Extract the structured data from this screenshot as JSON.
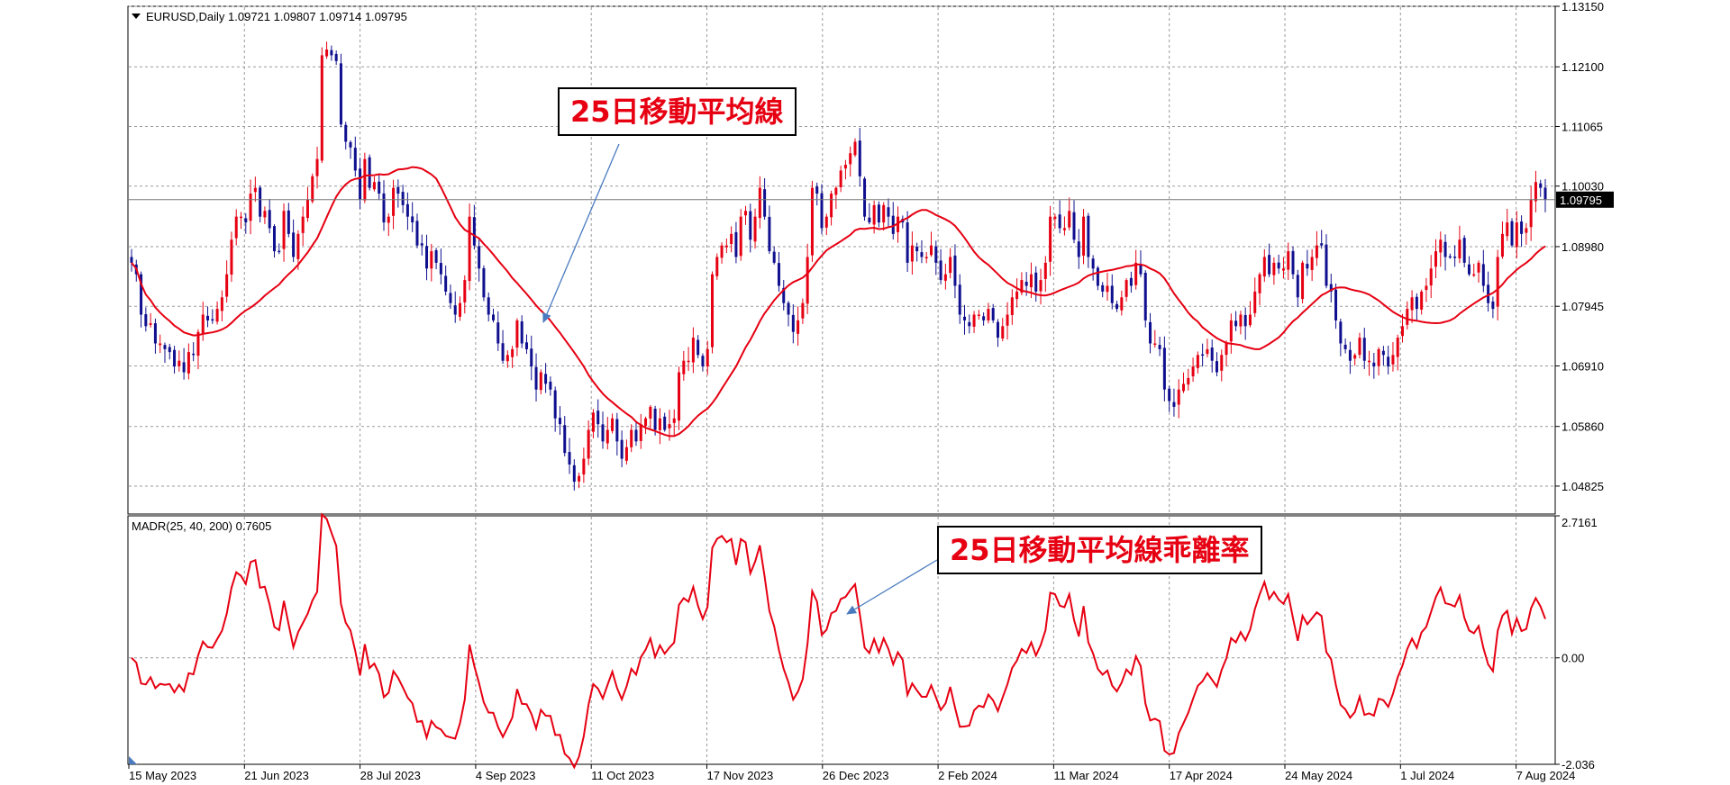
{
  "chart_data": [
    {
      "type": "candlestick",
      "title": "EURUSD,Daily  1.09721 1.09807 1.09714 1.09795",
      "ylim": [
        1.0434,
        1.1315
      ],
      "y_ticks": [
        "1.13150",
        "1.12100",
        "1.11065",
        "1.10030",
        "1.08980",
        "1.07945",
        "1.06910",
        "1.05860",
        "1.04825"
      ],
      "current_price": "1.09795",
      "x_ticks": [
        "15 May 2023",
        "21 Jun 2023",
        "28 Jul 2023",
        "4 Sep 2023",
        "11 Oct 2023",
        "17 Nov 2023",
        "26 Dec 2023",
        "2 Feb 2024",
        "11 Mar 2024",
        "17 Apr 2024",
        "24 May 2024",
        "1 Jul 2024",
        "7 Aug 2024"
      ],
      "grid": true,
      "close_series": [
        1.087,
        1.085,
        1.078,
        1.076,
        1.0765,
        1.073,
        1.073,
        1.072,
        1.0715,
        1.069,
        1.07,
        1.068,
        1.0715,
        1.071,
        1.075,
        1.078,
        1.077,
        1.077,
        1.079,
        1.081,
        1.085,
        1.091,
        1.095,
        1.095,
        1.094,
        1.099,
        1.1,
        1.095,
        1.096,
        1.093,
        1.089,
        1.089,
        1.096,
        1.092,
        1.088,
        1.092,
        1.095,
        1.098,
        1.102,
        1.105,
        1.123,
        1.124,
        1.123,
        1.122,
        1.111,
        1.108,
        1.107,
        1.103,
        1.098,
        1.105,
        1.1,
        1.101,
        1.099,
        1.094,
        1.095,
        1.1,
        1.099,
        1.097,
        1.095,
        1.094,
        1.09,
        1.09,
        1.086,
        1.089,
        1.087,
        1.085,
        1.082,
        1.08,
        1.078,
        1.08,
        1.084,
        1.095,
        1.09,
        1.086,
        1.081,
        1.078,
        1.077,
        1.073,
        1.07,
        1.071,
        1.072,
        1.077,
        1.073,
        1.072,
        1.069,
        1.065,
        1.068,
        1.066,
        1.065,
        1.06,
        1.059,
        1.054,
        1.052,
        1.049,
        1.05,
        1.053,
        1.058,
        1.061,
        1.059,
        1.056,
        1.058,
        1.06,
        1.056,
        1.053,
        1.055,
        1.058,
        1.056,
        1.059,
        1.06,
        1.062,
        1.058,
        1.06,
        1.058,
        1.059,
        1.06,
        1.068,
        1.07,
        1.07,
        1.074,
        1.071,
        1.069,
        1.072,
        1.085,
        1.088,
        1.09,
        1.09,
        1.092,
        1.088,
        1.095,
        1.096,
        1.091,
        1.095,
        1.1,
        1.095,
        1.089,
        1.087,
        1.083,
        1.08,
        1.078,
        1.075,
        1.077,
        1.08,
        1.088,
        1.1,
        1.099,
        1.093,
        1.095,
        1.099,
        1.1,
        1.103,
        1.104,
        1.106,
        1.108,
        1.102,
        1.095,
        1.094,
        1.097,
        1.094,
        1.097,
        1.095,
        1.092,
        1.095,
        1.094,
        1.087,
        1.09,
        1.089,
        1.088,
        1.088,
        1.09,
        1.087,
        1.084,
        1.085,
        1.088,
        1.083,
        1.078,
        1.077,
        1.076,
        1.078,
        1.078,
        1.077,
        1.079,
        1.077,
        1.074,
        1.076,
        1.078,
        1.081,
        1.082,
        1.084,
        1.083,
        1.085,
        1.082,
        1.084,
        1.087,
        1.095,
        1.095,
        1.093,
        1.093,
        1.096,
        1.091,
        1.088,
        1.095,
        1.088,
        1.086,
        1.083,
        1.082,
        1.083,
        1.08,
        1.079,
        1.081,
        1.084,
        1.083,
        1.087,
        1.085,
        1.077,
        1.073,
        1.073,
        1.072,
        1.065,
        1.063,
        1.062,
        1.065,
        1.066,
        1.067,
        1.069,
        1.071,
        1.071,
        1.072,
        1.07,
        1.068,
        1.071,
        1.073,
        1.077,
        1.076,
        1.078,
        1.076,
        1.078,
        1.082,
        1.085,
        1.088,
        1.085,
        1.087,
        1.086,
        1.086,
        1.089,
        1.085,
        1.081,
        1.087,
        1.086,
        1.088,
        1.09,
        1.09,
        1.083,
        1.082,
        1.077,
        1.073,
        1.072,
        1.07,
        1.071,
        1.074,
        1.07,
        1.07,
        1.069,
        1.072,
        1.071,
        1.069,
        1.071,
        1.074,
        1.076,
        1.079,
        1.081,
        1.079,
        1.082,
        1.083,
        1.086,
        1.089,
        1.091,
        1.088,
        1.088,
        1.088,
        1.091,
        1.087,
        1.085,
        1.085,
        1.087,
        1.083,
        1.08,
        1.079,
        1.088,
        1.092,
        1.094,
        1.09,
        1.094,
        1.092,
        1.093,
        1.098,
        1.101,
        1.1,
        1.098
      ]
    },
    {
      "type": "line",
      "title": "MADR(25, 40, 200) 0.7605",
      "ylim": [
        -2.036,
        2.7161
      ],
      "y_ticks": [
        "2.7161",
        "0.00",
        "-2.036"
      ],
      "x_ticks": [
        "15 May 2023",
        "21 Jun 2023",
        "28 Jul 2023",
        "4 Sep 2023",
        "11 Oct 2023",
        "17 Nov 2023",
        "26 Dec 2023",
        "2 Feb 2024",
        "11 Mar 2024",
        "17 Apr 2024",
        "24 May 2024",
        "1 Jul 2024",
        "7 Aug 2024"
      ],
      "grid": true
    }
  ],
  "colors": {
    "bull": "#e60012",
    "bear": "#0f0f8f",
    "ma": "#e60012",
    "grid": "#9a9a9a",
    "text": "#000000"
  },
  "annotations": [
    {
      "id": "ma-label",
      "text": "25日移動平均線"
    },
    {
      "id": "madr-label",
      "text": "25日移動平均線乖離率"
    }
  ]
}
